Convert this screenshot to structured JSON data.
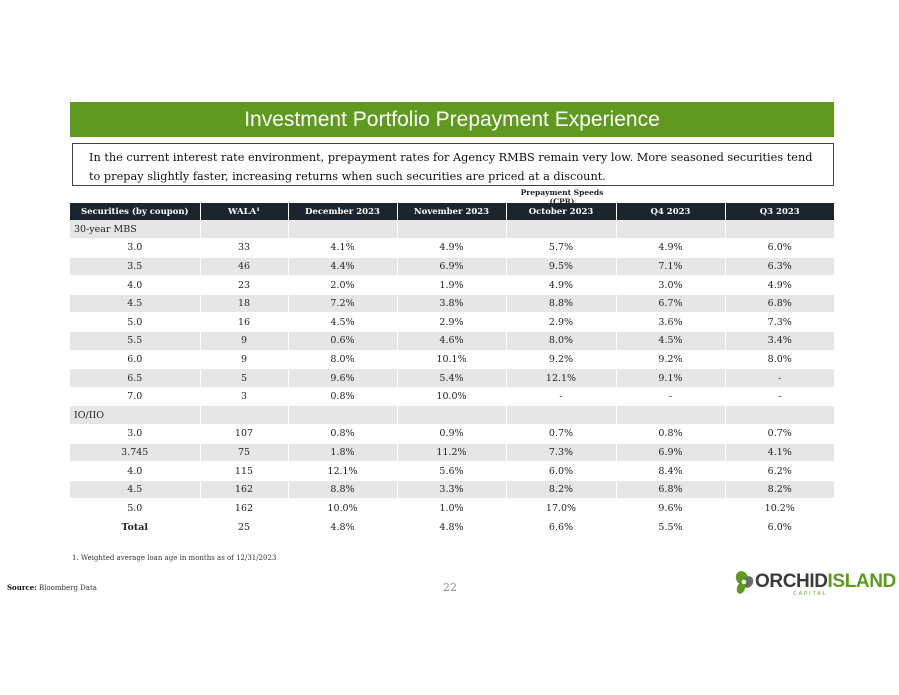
{
  "title": "Investment Portfolio Prepayment Experience",
  "intro": "In the current interest rate environment, prepayment rates for Agency RMBS remain very low.  More seasoned securities tend to prepay slightly faster, increasing returns when such securities are priced at a discount.",
  "group_header": "Prepayment Speeds (CPR)",
  "table": {
    "headers": [
      "Securities (by coupon)",
      "WALA¹",
      "December 2023",
      "November 2023",
      "October 2023",
      "Q4 2023",
      "Q3 2023"
    ],
    "sections": [
      {
        "label": "30-year MBS",
        "rows": [
          [
            "3.0",
            "33",
            "4.1%",
            "4.9%",
            "5.7%",
            "4.9%",
            "6.0%"
          ],
          [
            "3.5",
            "46",
            "4.4%",
            "6.9%",
            "9.5%",
            "7.1%",
            "6.3%"
          ],
          [
            "4.0",
            "23",
            "2.0%",
            "1.9%",
            "4.9%",
            "3.0%",
            "4.9%"
          ],
          [
            "4.5",
            "18",
            "7.2%",
            "3.8%",
            "8.8%",
            "6.7%",
            "6.8%"
          ],
          [
            "5.0",
            "16",
            "4.5%",
            "2.9%",
            "2.9%",
            "3.6%",
            "7.3%"
          ],
          [
            "5.5",
            "9",
            "0.6%",
            "4.6%",
            "8.0%",
            "4.5%",
            "3.4%"
          ],
          [
            "6.0",
            "9",
            "8.0%",
            "10.1%",
            "9.2%",
            "9.2%",
            "8.0%"
          ],
          [
            "6.5",
            "5",
            "9.6%",
            "5.4%",
            "12.1%",
            "9.1%",
            "-"
          ],
          [
            "7.0",
            "3",
            "0.8%",
            "10.0%",
            "-",
            "-",
            "-"
          ]
        ]
      },
      {
        "label": "IO/IIO",
        "rows": [
          [
            "3.0",
            "107",
            "0.8%",
            "0.9%",
            "0.7%",
            "0.8%",
            "0.7%"
          ],
          [
            "3.745",
            "75",
            "1.8%",
            "11.2%",
            "7.3%",
            "6.9%",
            "4.1%"
          ],
          [
            "4.0",
            "115",
            "12.1%",
            "5.6%",
            "6.0%",
            "8.4%",
            "6.2%"
          ],
          [
            "4.5",
            "162",
            "8.8%",
            "3.3%",
            "8.2%",
            "6.8%",
            "8.2%"
          ],
          [
            "5.0",
            "162",
            "10.0%",
            "1.0%",
            "17.0%",
            "9.6%",
            "10.2%"
          ]
        ]
      }
    ],
    "total": [
      "Total",
      "25",
      "4.8%",
      "4.8%",
      "6.6%",
      "5.5%",
      "6.0%"
    ]
  },
  "footnote": "1. Weighted average loan age in months as of 12/31/2023",
  "source_label": "Source:",
  "source_text": " Bloomberg Data",
  "page_number": "22",
  "logo": {
    "word_dark": "ORCHID",
    "word_green": "ISLAND",
    "sub": "CAPITAL",
    "color_dark": "#3b3b3b",
    "color_green": "#5f9a1f"
  },
  "colors": {
    "title_bar": "#5f9a1f",
    "table_header": "#1b2530",
    "row_shade": "#e6e6e6"
  }
}
